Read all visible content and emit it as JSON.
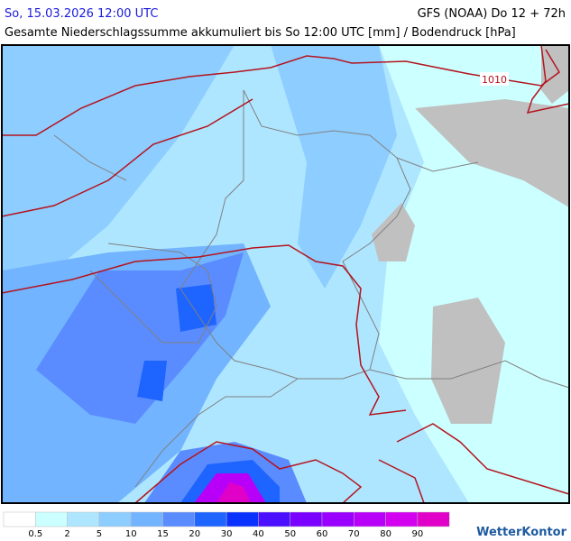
{
  "header": {
    "datetime": "So, 15.03.2026 12:00 UTC",
    "model": "GFS (NOAA) Do 12 + 72h",
    "subtitle": "Gesamte Niederschlagssumme akkumuliert bis So 12:00 UTC [mm] / Bodendruck [hPa]"
  },
  "map": {
    "isobar_label": "1010"
  },
  "legend": {
    "ticks": [
      0.5,
      2,
      5,
      10,
      15,
      20,
      30,
      40,
      50,
      60,
      70,
      80,
      90
    ],
    "colors": [
      "#ffffff",
      "#ccffff",
      "#aee6ff",
      "#8ecdff",
      "#72b4ff",
      "#5a8cff",
      "#1e64ff",
      "#0a32ff",
      "#4a10ff",
      "#7a00ff",
      "#9a00ff",
      "#b800f8",
      "#d400f0",
      "#e000c8"
    ]
  },
  "brand": "WetterKontor"
}
